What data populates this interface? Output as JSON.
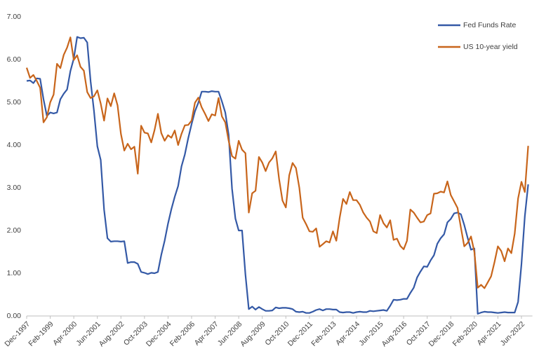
{
  "chart_data": {
    "type": "line",
    "categories": [
      "Dec-1997",
      null,
      null,
      null,
      null,
      null,
      null,
      "Feb-1999",
      null,
      null,
      null,
      null,
      null,
      null,
      "Apr-2000",
      null,
      null,
      null,
      null,
      null,
      null,
      "Jun-2001",
      null,
      null,
      null,
      null,
      null,
      null,
      "Aug-2002",
      null,
      null,
      null,
      null,
      null,
      null,
      "Oct-2003",
      null,
      null,
      null,
      null,
      null,
      null,
      "Dec-2004",
      null,
      null,
      null,
      null,
      null,
      null,
      "Feb-2006",
      null,
      null,
      null,
      null,
      null,
      null,
      "Apr-2007",
      null,
      null,
      null,
      null,
      null,
      null,
      "Jun-2008",
      null,
      null,
      null,
      null,
      null,
      null,
      "Aug-2009",
      null,
      null,
      null,
      null,
      null,
      null,
      "Oct-2010",
      null,
      null,
      null,
      null,
      null,
      null,
      "Dec-2011",
      null,
      null,
      null,
      null,
      null,
      null,
      "Feb-2013",
      null,
      null,
      null,
      null,
      null,
      null,
      "Apr-2014",
      null,
      null,
      null,
      null,
      null,
      null,
      "Jun-2015",
      null,
      null,
      null,
      null,
      null,
      null,
      "Aug-2016",
      null,
      null,
      null,
      null,
      null,
      null,
      "Oct-2017",
      null,
      null,
      null,
      null,
      null,
      null,
      "Dec-2018",
      null,
      null,
      null,
      null,
      null,
      null,
      "Feb-2020",
      null,
      null,
      null,
      null,
      null,
      null,
      "Apr-2021",
      null,
      null,
      null,
      null,
      null,
      null,
      "Jun-2022",
      null,
      null
    ],
    "series": [
      {
        "name": "Fed Funds Rate",
        "color": "#3459a6",
        "values": [
          5.5,
          5.51,
          5.45,
          5.56,
          5.55,
          5.07,
          4.68,
          4.76,
          4.74,
          4.76,
          5.07,
          5.2,
          5.3,
          5.73,
          6.02,
          6.53,
          6.5,
          6.51,
          6.4,
          5.49,
          4.8,
          3.97,
          3.65,
          2.49,
          1.82,
          1.74,
          1.75,
          1.75,
          1.74,
          1.75,
          1.24,
          1.26,
          1.26,
          1.22,
          1.03,
          1.01,
          0.98,
          1.01,
          1.0,
          1.03,
          1.43,
          1.76,
          2.16,
          2.5,
          2.79,
          3.04,
          3.5,
          3.78,
          4.16,
          4.49,
          4.79,
          4.99,
          5.25,
          5.25,
          5.24,
          5.26,
          5.25,
          5.25,
          5.02,
          4.76,
          4.24,
          2.98,
          2.28,
          2.0,
          2.0,
          0.97,
          0.16,
          0.22,
          0.15,
          0.21,
          0.16,
          0.12,
          0.12,
          0.13,
          0.2,
          0.18,
          0.19,
          0.19,
          0.18,
          0.16,
          0.1,
          0.09,
          0.1,
          0.07,
          0.07,
          0.1,
          0.14,
          0.16,
          0.13,
          0.16,
          0.16,
          0.15,
          0.15,
          0.09,
          0.08,
          0.09,
          0.09,
          0.07,
          0.09,
          0.1,
          0.09,
          0.09,
          0.12,
          0.11,
          0.12,
          0.13,
          0.14,
          0.12,
          0.24,
          0.38,
          0.37,
          0.38,
          0.4,
          0.4,
          0.54,
          0.66,
          0.9,
          1.04,
          1.16,
          1.15,
          1.3,
          1.42,
          1.69,
          1.82,
          1.91,
          2.19,
          2.27,
          2.4,
          2.42,
          2.38,
          2.13,
          1.83,
          1.55,
          1.58,
          0.05,
          0.08,
          0.1,
          0.09,
          0.09,
          0.08,
          0.07,
          0.08,
          0.09,
          0.08,
          0.08,
          0.08,
          0.33,
          1.21,
          2.33,
          3.08
        ]
      },
      {
        "name": "US 10-year yield",
        "color": "#c8651b",
        "values": [
          5.81,
          5.57,
          5.64,
          5.5,
          5.34,
          4.53,
          4.65,
          5.0,
          5.18,
          5.9,
          5.8,
          6.11,
          6.28,
          6.52,
          5.99,
          6.1,
          5.83,
          5.74,
          5.24,
          5.1,
          5.14,
          5.28,
          4.97,
          4.57,
          5.09,
          4.91,
          5.21,
          4.93,
          4.26,
          3.87,
          4.03,
          3.9,
          3.96,
          3.33,
          4.45,
          4.29,
          4.27,
          4.06,
          4.35,
          4.73,
          4.28,
          4.1,
          4.23,
          4.17,
          4.34,
          4.0,
          4.26,
          4.46,
          4.47,
          4.57,
          4.99,
          5.11,
          4.88,
          4.73,
          4.56,
          4.72,
          4.69,
          5.1,
          4.67,
          4.53,
          4.1,
          3.74,
          3.68,
          4.1,
          3.89,
          3.81,
          2.42,
          2.87,
          2.93,
          3.72,
          3.59,
          3.39,
          3.59,
          3.69,
          3.85,
          3.2,
          2.7,
          2.54,
          3.29,
          3.58,
          3.46,
          3.0,
          2.3,
          2.15,
          1.98,
          1.97,
          2.05,
          1.62,
          1.68,
          1.75,
          1.72,
          1.98,
          1.76,
          2.3,
          2.74,
          2.62,
          2.9,
          2.71,
          2.71,
          2.6,
          2.42,
          2.3,
          2.21,
          1.98,
          1.94,
          2.36,
          2.17,
          2.07,
          2.24,
          1.78,
          1.81,
          1.64,
          1.56,
          1.76,
          2.49,
          2.42,
          2.3,
          2.19,
          2.21,
          2.36,
          2.4,
          2.86,
          2.87,
          2.91,
          2.89,
          3.15,
          2.83,
          2.68,
          2.53,
          2.07,
          1.63,
          1.71,
          1.86,
          1.5,
          0.66,
          0.73,
          0.65,
          0.79,
          0.93,
          1.26,
          1.63,
          1.52,
          1.28,
          1.58,
          1.47,
          1.93,
          2.75,
          3.14,
          2.9,
          3.98
        ]
      }
    ],
    "ylim": [
      0,
      7
    ],
    "yticks": [
      {
        "value": 0,
        "label": "0.00"
      },
      {
        "value": 1,
        "label": "1.00"
      },
      {
        "value": 2,
        "label": "2.00"
      },
      {
        "value": 3,
        "label": "3.00"
      },
      {
        "value": 4,
        "label": "4.00"
      },
      {
        "value": 5,
        "label": "5.00"
      },
      {
        "value": 6,
        "label": "6.00"
      },
      {
        "value": 7,
        "label": "7.00"
      }
    ],
    "grid": false,
    "legend": "top-right"
  }
}
